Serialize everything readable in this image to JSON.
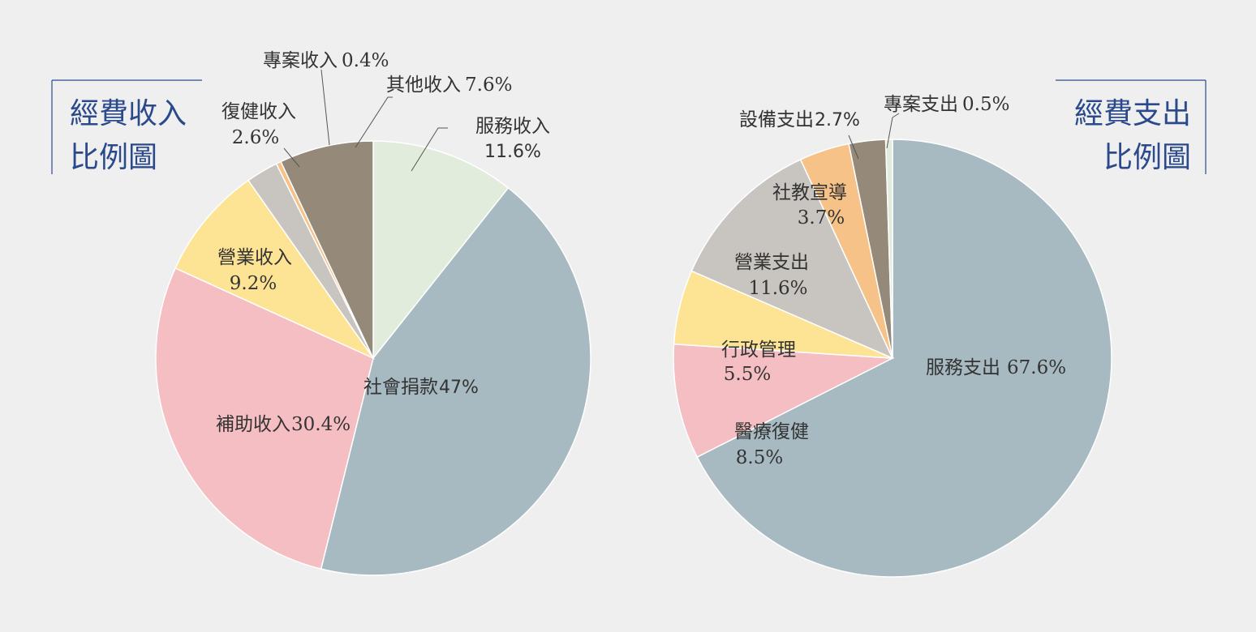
{
  "chart_data": [
    {
      "type": "pie",
      "title": "經費收入比例圖",
      "title_lines": [
        "經費收入",
        "比例圖"
      ],
      "slices": [
        {
          "label": "服務收入",
          "value": 11.6,
          "display": "11.6%",
          "color": "#e2ecdc"
        },
        {
          "label": "社會捐款",
          "value": 47,
          "display": "47%",
          "color": "#a7b9c1"
        },
        {
          "label": "補助收入",
          "value": 30.4,
          "display": "30.4%",
          "color": "#f4bec2"
        },
        {
          "label": "營業收入",
          "value": 9.2,
          "display": "9.2%",
          "color": "#fde394"
        },
        {
          "label": "復健收入",
          "value": 2.6,
          "display": "2.6%",
          "color": "#c8c5c0"
        },
        {
          "label": "專案收入",
          "value": 0.4,
          "display": "0.4%",
          "color": "#f6c288"
        },
        {
          "label": "其他收入",
          "value": 7.6,
          "display": "7.6%",
          "color": "#958a79"
        }
      ]
    },
    {
      "type": "pie",
      "title": "經費支出比例圖",
      "title_lines": [
        "經費支出",
        "比例圖"
      ],
      "slices": [
        {
          "label": "服務支出",
          "value": 67.6,
          "display": "67.6%",
          "color": "#a7b9c1"
        },
        {
          "label": "醫療復健",
          "value": 8.5,
          "display": "8.5%",
          "color": "#f4bec2"
        },
        {
          "label": "行政管理",
          "value": 5.5,
          "display": "5.5%",
          "color": "#fde394"
        },
        {
          "label": "營業支出",
          "value": 11.6,
          "display": "11.6%",
          "color": "#c8c5c0"
        },
        {
          "label": "社教宣導",
          "value": 3.7,
          "display": "3.7%",
          "color": "#f6c288"
        },
        {
          "label": "設備支出",
          "value": 2.7,
          "display": "2.7%",
          "color": "#958a79"
        },
        {
          "label": "專案支出",
          "value": 0.5,
          "display": "0.5%",
          "color": "#e2ecdc"
        }
      ]
    }
  ]
}
